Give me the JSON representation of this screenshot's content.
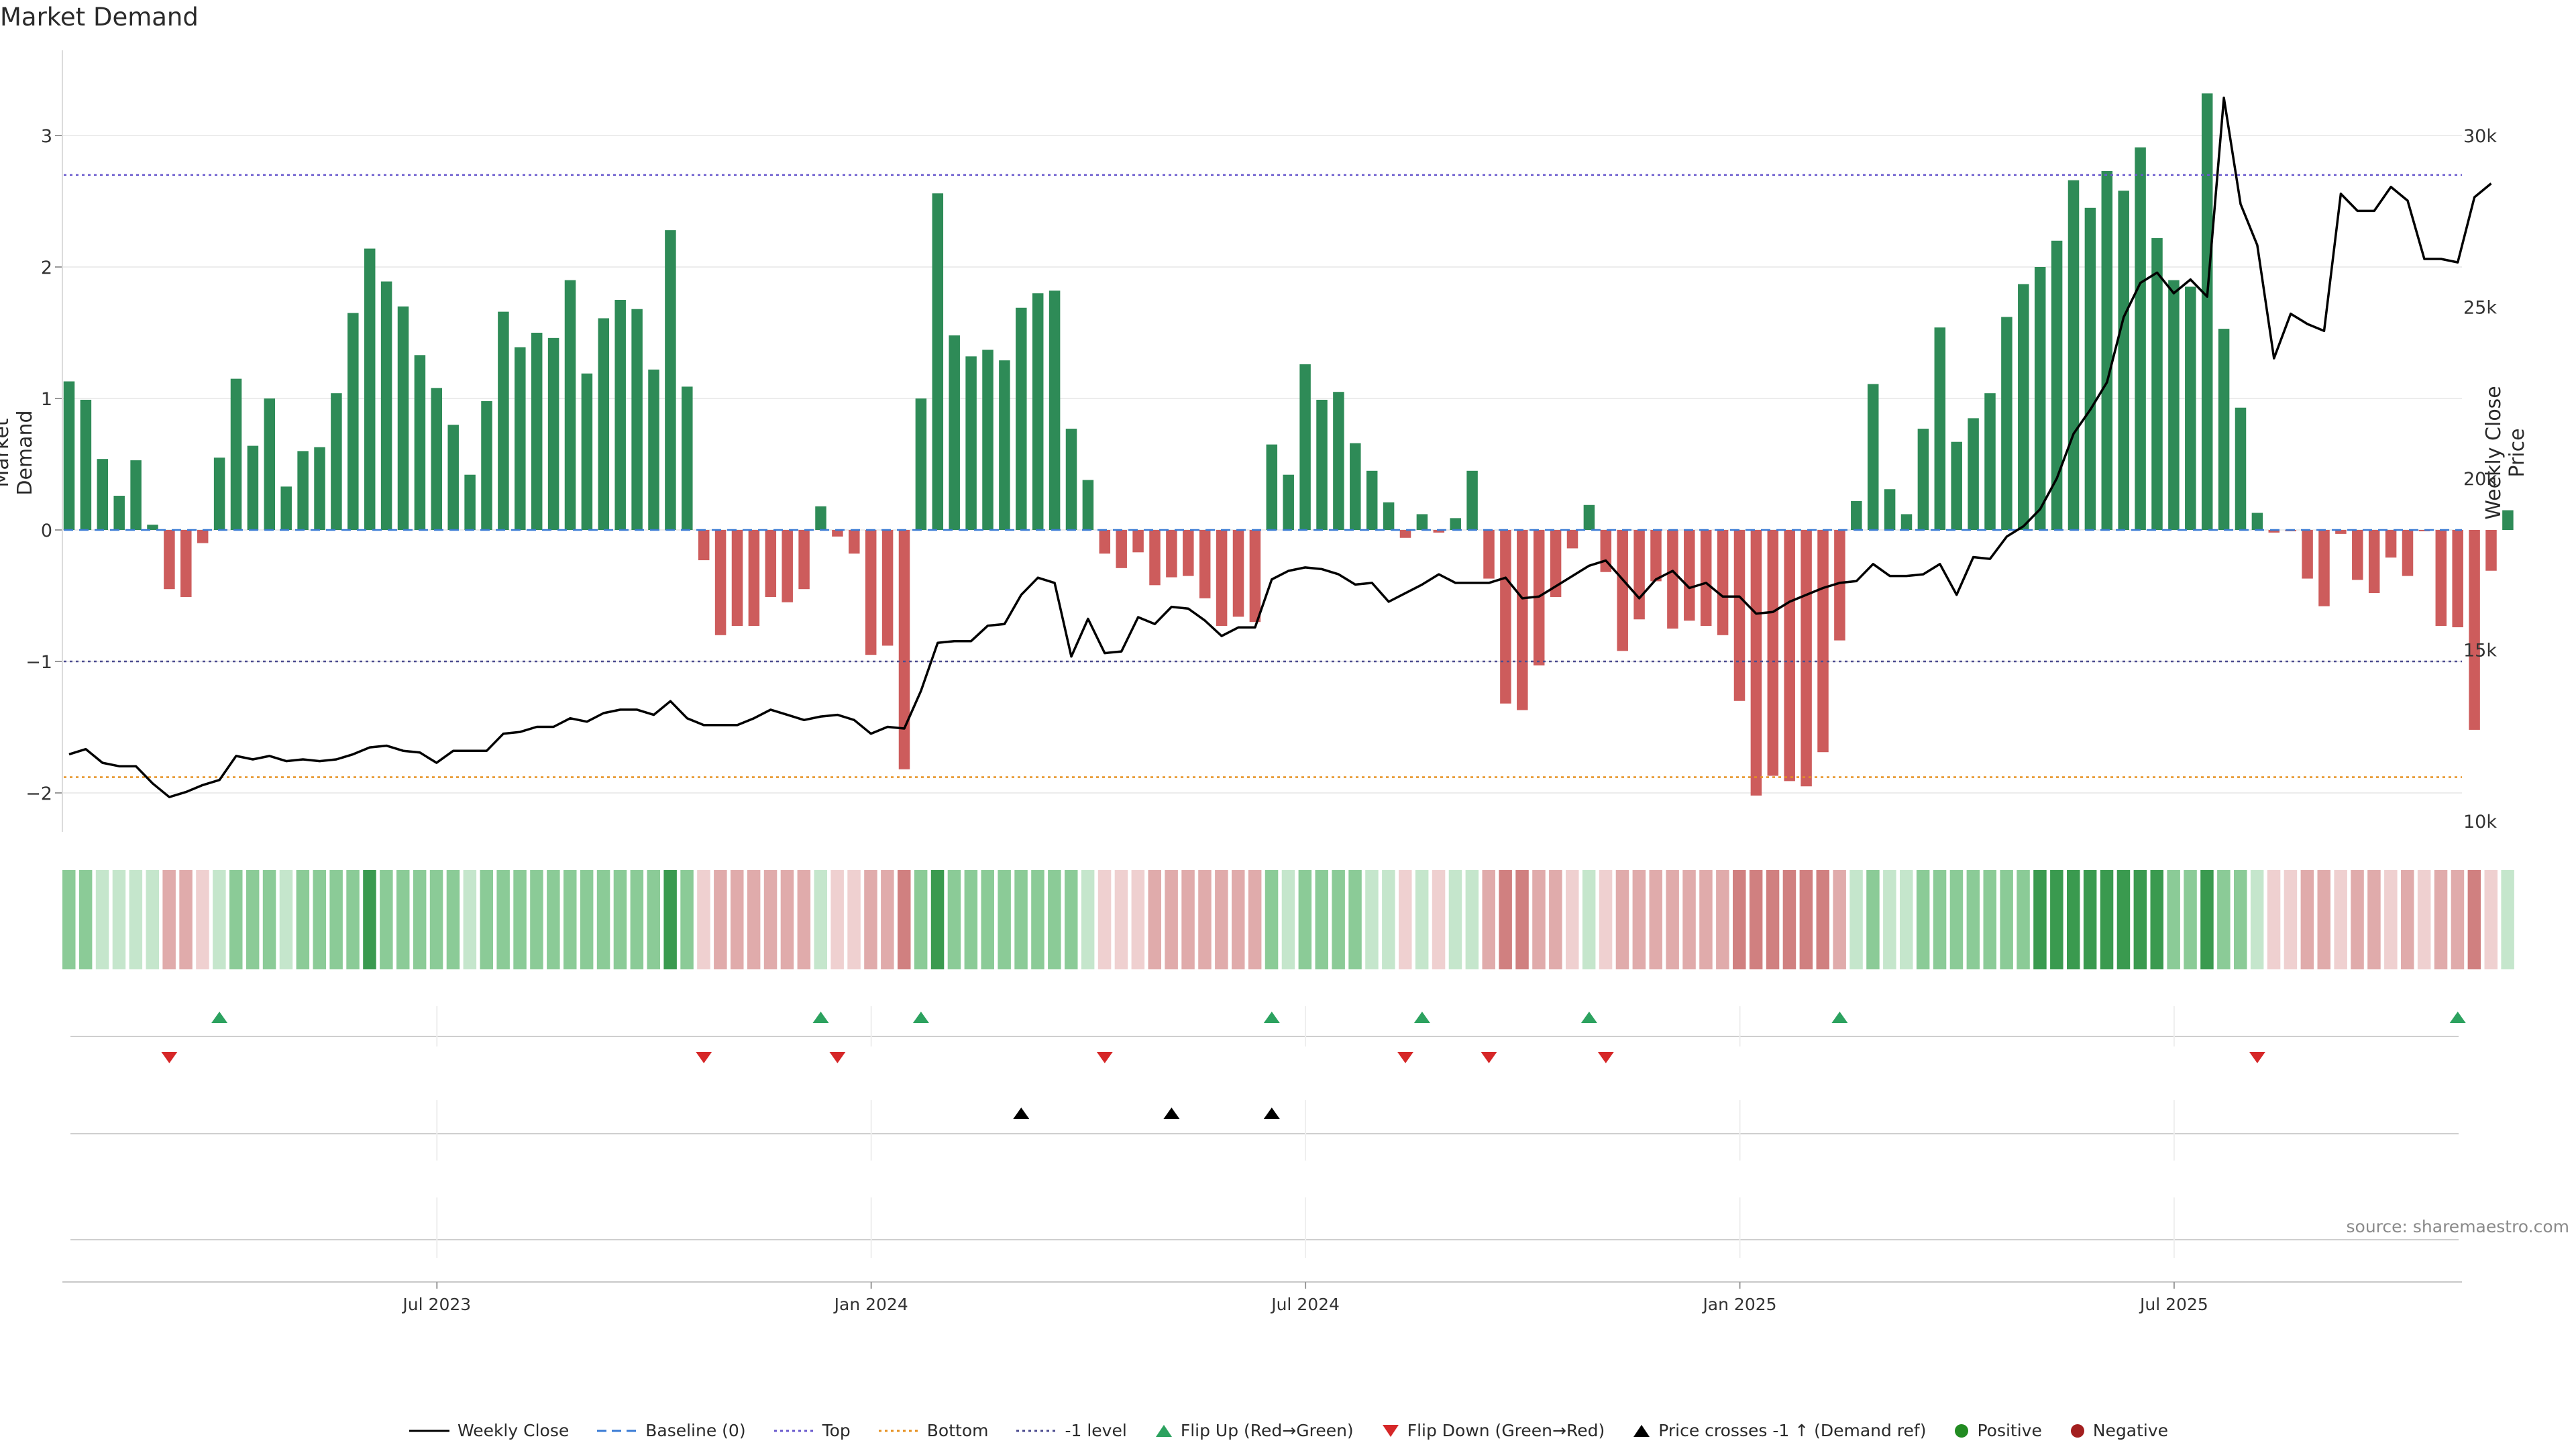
{
  "title": "Market Demand",
  "source": "source: sharemaestro.com",
  "chart_data": {
    "type": "bar+line",
    "title": "Market Demand",
    "ylabel_left": "Market Demand",
    "ylabel_right": "Weekly Close Price",
    "ylim_left": [
      -2.3,
      3.5
    ],
    "ylim_right": [
      10000,
      32000
    ],
    "yticks_left": [
      -2,
      -1,
      0,
      1,
      2,
      3
    ],
    "ytick_labels_left": [
      "−2",
      "−1",
      "0",
      "1",
      "2",
      "3"
    ],
    "yticks_right": [
      10000,
      15000,
      20000,
      25000,
      30000
    ],
    "ytick_labels_right": [
      "10k",
      "15k",
      "20k",
      "25k",
      "30k"
    ],
    "x_tick_labels": [
      "Jul 2023",
      "Jan 2024",
      "Jul 2024",
      "Jan 2025",
      "Jul 2025"
    ],
    "x_tick_index": [
      22,
      48,
      74,
      100,
      126
    ],
    "levels": {
      "top": 2.7,
      "bottom": -1.88,
      "minus_one": -1
    },
    "demand": [
      1.13,
      0.99,
      0.54,
      0.26,
      0.53,
      0.04,
      -0.45,
      -0.51,
      -0.1,
      0.55,
      1.15,
      0.64,
      1.0,
      0.33,
      0.6,
      0.63,
      1.04,
      1.65,
      2.14,
      1.89,
      1.7,
      1.33,
      1.08,
      0.8,
      0.42,
      0.98,
      1.66,
      1.39,
      1.5,
      1.46,
      1.9,
      1.19,
      1.61,
      1.75,
      1.68,
      1.22,
      2.28,
      1.09,
      -0.23,
      -0.8,
      -0.73,
      -0.73,
      -0.51,
      -0.55,
      -0.45,
      0.18,
      -0.05,
      -0.18,
      -0.95,
      -0.88,
      -1.82,
      1.0,
      2.56,
      1.48,
      1.32,
      1.37,
      1.29,
      1.69,
      1.8,
      1.82,
      0.77,
      0.38,
      -0.18,
      -0.29,
      -0.17,
      -0.42,
      -0.36,
      -0.35,
      -0.52,
      -0.73,
      -0.66,
      -0.7,
      0.65,
      0.42,
      1.26,
      0.99,
      1.05,
      0.66,
      0.45,
      0.21,
      -0.06,
      0.12,
      -0.02,
      0.09,
      0.45,
      -0.37,
      -1.32,
      -1.37,
      -1.03,
      -0.51,
      -0.14,
      0.19,
      -0.32,
      -0.92,
      -0.68,
      -0.39,
      -0.75,
      -0.69,
      -0.73,
      -0.8,
      -1.3,
      -2.02,
      -1.87,
      -1.91,
      -1.95,
      -1.69,
      -0.84,
      0.22,
      1.11,
      0.31,
      0.12,
      0.77,
      1.54,
      0.67,
      0.85,
      1.04,
      1.62,
      1.87,
      2.0,
      2.2,
      2.66,
      2.45,
      2.73,
      2.58,
      2.91,
      2.22,
      1.9,
      1.85,
      3.32,
      1.53,
      0.93,
      0.13,
      -0.02,
      -0.01,
      -0.37,
      -0.58,
      -0.03,
      -0.38,
      -0.48,
      -0.21,
      -0.35,
      -0.01,
      -0.73,
      -0.74,
      -1.52,
      -0.31,
      0.15
    ],
    "weekly_close": [
      11950,
      12100,
      11700,
      11600,
      11600,
      11100,
      10700,
      10850,
      11050,
      11200,
      11900,
      11800,
      11900,
      11750,
      11800,
      11750,
      11800,
      11950,
      12150,
      12200,
      12050,
      12000,
      11700,
      12050,
      12050,
      12050,
      12550,
      12600,
      12750,
      12750,
      13000,
      12900,
      13150,
      13250,
      13250,
      13100,
      13500,
      13000,
      12800,
      12800,
      12800,
      13000,
      13250,
      13100,
      12950,
      13050,
      13100,
      12950,
      12550,
      12750,
      12700,
      13800,
      15200,
      15250,
      15250,
      15700,
      15750,
      16600,
      17100,
      16950,
      14800,
      15900,
      14900,
      14950,
      15950,
      15750,
      16250,
      16200,
      15850,
      15400,
      15650,
      15650,
      17050,
      17300,
      17400,
      17350,
      17200,
      16900,
      16950,
      16400,
      16650,
      16900,
      17200,
      16950,
      16950,
      16950,
      17100,
      16500,
      16550,
      16850,
      17150,
      17450,
      17600,
      17050,
      16500,
      17050,
      17300,
      16800,
      16950,
      16550,
      16550,
      16050,
      16100,
      16400,
      16600,
      16800,
      16950,
      17000,
      17500,
      17150,
      17150,
      17200,
      17500,
      16600,
      17700,
      17650,
      18300,
      18600,
      19100,
      20000,
      21300,
      22000,
      22800,
      24700,
      25700,
      26000,
      25400,
      25800,
      25300,
      31100,
      28000,
      26800,
      23500,
      24800,
      24500,
      24300,
      28300,
      27800,
      27800,
      28500,
      28100,
      26400,
      26400,
      26300,
      28200,
      28600
    ],
    "flip_up_index": [
      9,
      45,
      51,
      72,
      81,
      91,
      106,
      143
    ],
    "flip_down_index": [
      6,
      38,
      46,
      62,
      80,
      85,
      92,
      131
    ],
    "price_cross_index": [
      57,
      66,
      72
    ],
    "heat_colors": {
      "strong_pos": "#3a9a4f",
      "pos": "#8bcb97",
      "weak_pos": "#c5e6cc",
      "strong_neg": "#d08080",
      "neg": "#e0abab",
      "weak_neg": "#efd0d0"
    },
    "series_colors": {
      "positive_bar": "#2e8b57",
      "negative_bar": "#cd5c5c",
      "price": "#000000",
      "top": "#6a5acd",
      "bottom": "#e69020",
      "minus_one": "#4b4b8f",
      "baseline": "#3a7bd5",
      "flip_up": "#2ca25f",
      "flip_down": "#d62728",
      "price_cross": "#000000"
    },
    "legend": [
      "Weekly Close",
      "Baseline (0)",
      "Top",
      "Bottom",
      "-1 level",
      "Flip Up (Red→Green)",
      "Flip Down (Green→Red)",
      "Price crosses -1 ↑ (Demand ref)",
      "Positive",
      "Negative"
    ]
  }
}
